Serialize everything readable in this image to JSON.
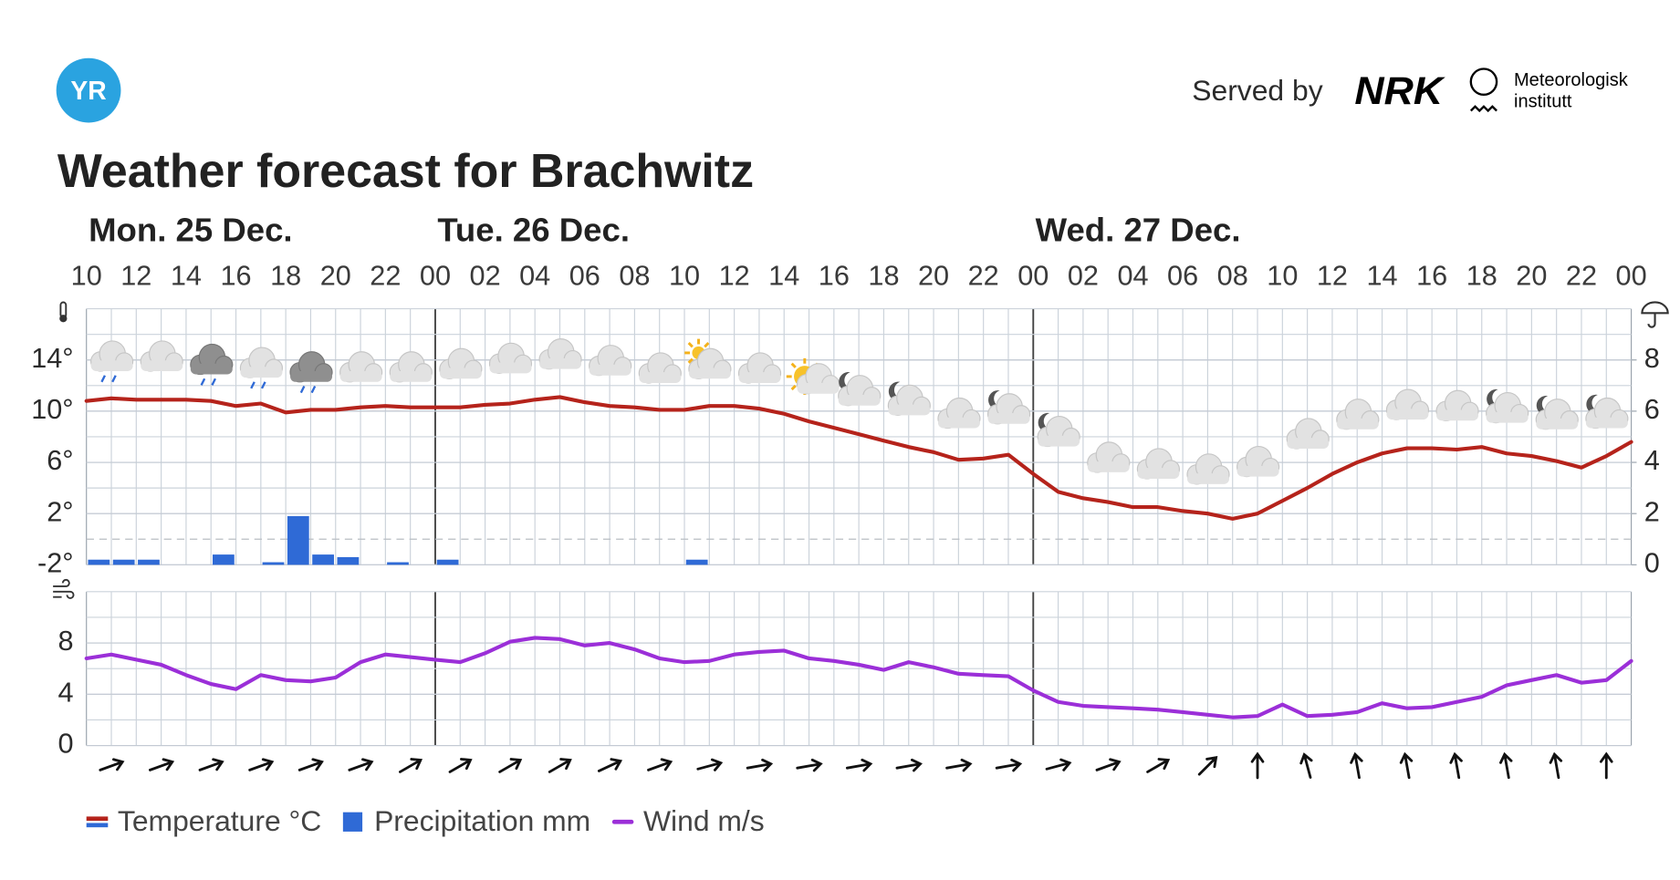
{
  "header": {
    "logo": "YR",
    "served_by": "Served by",
    "nrk": "NRK",
    "met_line1": "Meteorologisk",
    "met_line2": "institutt"
  },
  "chart_data": [
    {
      "type": "combo",
      "title": "Weather forecast for Brachwitz",
      "days": [
        "Mon. 25 Dec.",
        "Tue. 26 Dec.",
        "Wed. 27 Dec."
      ],
      "categories": [
        "10",
        null,
        "12",
        null,
        "14",
        null,
        "16",
        null,
        "18",
        null,
        "20",
        null,
        "22",
        null,
        "00",
        null,
        "02",
        null,
        "04",
        null,
        "06",
        null,
        "08",
        null,
        "10",
        null,
        "12",
        null,
        "14",
        null,
        "16",
        null,
        "18",
        null,
        "20",
        null,
        "22",
        null,
        "00",
        null,
        "02",
        null,
        "04",
        null,
        "06",
        null,
        "08",
        null,
        "10",
        null,
        "12",
        null,
        "14",
        null,
        "16",
        null,
        "18",
        null,
        "20",
        null,
        "22",
        null,
        "00"
      ],
      "series": [
        {
          "name": "Temperature °C",
          "type": "line",
          "color": "#b5231b",
          "values": [
            10.8,
            11.0,
            10.9,
            10.9,
            10.9,
            10.8,
            10.4,
            10.6,
            9.9,
            10.1,
            10.1,
            10.3,
            10.4,
            10.3,
            10.3,
            10.3,
            10.5,
            10.6,
            10.9,
            11.1,
            10.7,
            10.4,
            10.3,
            10.1,
            10.1,
            10.4,
            10.4,
            10.2,
            9.8,
            9.2,
            8.7,
            8.2,
            7.7,
            7.2,
            6.8,
            6.2,
            6.3,
            6.6,
            5.1,
            3.7,
            3.2,
            2.9,
            2.5,
            2.5,
            2.2,
            2.0,
            1.6,
            2.0,
            3.0,
            4.0,
            5.1,
            6.0,
            6.7,
            7.1,
            7.1,
            7.0,
            7.2,
            6.7,
            6.5,
            6.1,
            5.6,
            6.5,
            7.6
          ]
        },
        {
          "name": "Precipitation mm",
          "type": "bar",
          "axis": "y2",
          "color": "#2f6ad6",
          "values": [
            0.2,
            0.2,
            0.2,
            0,
            0,
            0.4,
            0,
            0.1,
            1.9,
            0.4,
            0.3,
            0,
            0.1,
            0,
            0.2,
            0,
            0,
            0,
            0,
            0,
            0,
            0,
            0,
            0,
            0.2,
            0,
            0,
            0,
            0,
            0,
            0,
            0,
            0,
            0,
            0,
            0,
            0,
            0,
            0,
            0,
            0,
            0,
            0,
            0,
            0,
            0,
            0,
            0,
            0,
            0,
            0,
            0,
            0,
            0,
            0,
            0,
            0,
            0,
            0,
            0,
            0,
            0,
            null
          ]
        }
      ],
      "ylim": [
        -2,
        18
      ],
      "yticks": [
        {
          "value": -2,
          "label": "-2°"
        },
        {
          "value": 2,
          "label": "2°"
        },
        {
          "value": 6,
          "label": "6°"
        },
        {
          "value": 10,
          "label": "10°"
        },
        {
          "value": 14,
          "label": "14°"
        }
      ],
      "y2lim": [
        0,
        10
      ],
      "y2ticks": [
        0,
        2,
        4,
        6,
        8
      ],
      "grid": true
    },
    {
      "type": "line",
      "series": [
        {
          "name": "Wind m/s",
          "color": "#9b2fd8",
          "values": [
            6.8,
            7.1,
            6.7,
            6.3,
            5.5,
            4.8,
            4.4,
            5.5,
            5.1,
            5.0,
            5.3,
            6.5,
            7.1,
            6.9,
            6.7,
            6.5,
            7.2,
            8.1,
            8.4,
            8.3,
            7.8,
            8.0,
            7.5,
            6.8,
            6.5,
            6.6,
            7.1,
            7.3,
            7.4,
            6.8,
            6.6,
            6.3,
            5.9,
            6.5,
            6.1,
            5.6,
            5.5,
            5.4,
            4.3,
            3.4,
            3.1,
            3.0,
            2.9,
            2.8,
            2.6,
            2.4,
            2.2,
            2.3,
            3.2,
            2.3,
            2.4,
            2.6,
            3.3,
            2.9,
            3.0,
            3.4,
            3.8,
            4.7,
            5.1,
            5.5,
            4.9,
            5.1,
            6.6
          ]
        }
      ],
      "arrow_directions": [
        70,
        70,
        70,
        70,
        70,
        70,
        60,
        60,
        60,
        60,
        65,
        70,
        75,
        80,
        80,
        80,
        80,
        80,
        80,
        75,
        70,
        60,
        45,
        0,
        -15,
        -10,
        -10,
        -10,
        -10,
        -10,
        0
      ],
      "ylim": [
        0,
        12
      ],
      "yticks": [
        0,
        4,
        8
      ],
      "grid": true
    }
  ]
}
